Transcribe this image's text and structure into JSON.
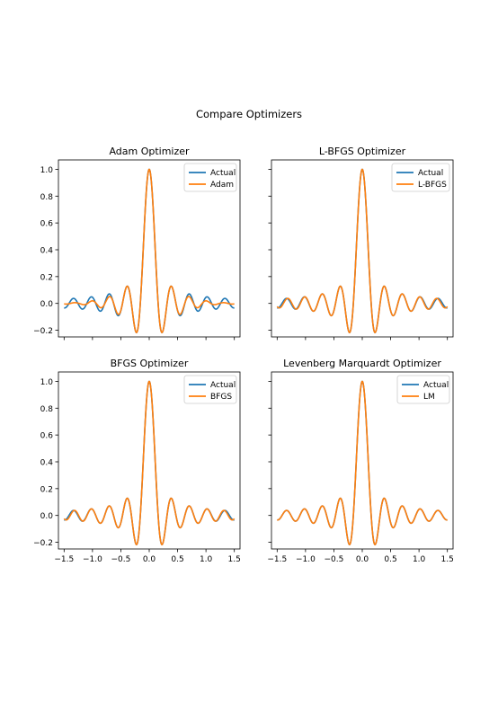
{
  "figure": {
    "suptitle": "Compare Optimizers"
  },
  "colors": {
    "actual": "#1f77b4",
    "fit": "#ff7f0e",
    "axes": "#000000",
    "legend_border": "#cccccc"
  },
  "chart_data": [
    {
      "type": "line",
      "title": "Adam Optimizer",
      "xlim": [
        -1.6,
        1.6
      ],
      "ylim": [
        -0.25,
        1.07
      ],
      "yticks": [
        -0.2,
        0.0,
        0.2,
        0.4,
        0.6,
        0.8,
        1.0
      ],
      "ytick_labels": [
        "−0.2",
        "0.0",
        "0.2",
        "0.4",
        "0.6",
        "0.8",
        "1.0"
      ],
      "xticks": [
        -1.5,
        -1.0,
        -0.5,
        0.0,
        0.5,
        1.0,
        1.5
      ],
      "xtick_labels": [],
      "legend": "top-right",
      "series": [
        {
          "name": "Actual",
          "function": "sin(20x)/(20x)",
          "x_range": [
            -1.5,
            1.5
          ]
        },
        {
          "name": "Adam",
          "function": "fitted approximation of sin(20x)/(20x); damped outer ripples (|x| > 0.6)",
          "x_range": [
            -1.5,
            1.5
          ]
        }
      ]
    },
    {
      "type": "line",
      "title": "L-BFGS Optimizer",
      "xlim": [
        -1.6,
        1.6
      ],
      "ylim": [
        -0.25,
        1.07
      ],
      "yticks": [
        -0.2,
        0.0,
        0.2,
        0.4,
        0.6,
        0.8,
        1.0
      ],
      "ytick_labels": [],
      "xticks": [
        -1.5,
        -1.0,
        -0.5,
        0.0,
        0.5,
        1.0,
        1.5
      ],
      "xtick_labels": [],
      "legend": "top-right",
      "series": [
        {
          "name": "Actual",
          "function": "sin(20x)/(20x)",
          "x_range": [
            -1.5,
            1.5
          ]
        },
        {
          "name": "L-BFGS",
          "function": "fitted approximation of sin(20x)/(20x); slightly shifted outer ripples",
          "x_range": [
            -1.5,
            1.5
          ]
        }
      ]
    },
    {
      "type": "line",
      "title": "BFGS Optimizer",
      "xlim": [
        -1.6,
        1.6
      ],
      "ylim": [
        -0.25,
        1.07
      ],
      "yticks": [
        -0.2,
        0.0,
        0.2,
        0.4,
        0.6,
        0.8,
        1.0
      ],
      "ytick_labels": [
        "−0.2",
        "0.0",
        "0.2",
        "0.4",
        "0.6",
        "0.8",
        "1.0"
      ],
      "xticks": [
        -1.5,
        -1.0,
        -0.5,
        0.0,
        0.5,
        1.0,
        1.5
      ],
      "xtick_labels": [
        "−1.5",
        "−1.0",
        "−0.5",
        "0.0",
        "0.5",
        "1.0",
        "1.5"
      ],
      "legend": "top-right",
      "series": [
        {
          "name": "Actual",
          "function": "sin(20x)/(20x)",
          "x_range": [
            -1.5,
            1.5
          ]
        },
        {
          "name": "BFGS",
          "function": "fitted approximation of sin(20x)/(20x); small phase error at edges",
          "x_range": [
            -1.5,
            1.5
          ]
        }
      ]
    },
    {
      "type": "line",
      "title": "Levenberg Marquardt Optimizer",
      "xlim": [
        -1.6,
        1.6
      ],
      "ylim": [
        -0.25,
        1.07
      ],
      "yticks": [
        -0.2,
        0.0,
        0.2,
        0.4,
        0.6,
        0.8,
        1.0
      ],
      "ytick_labels": [],
      "xticks": [
        -1.5,
        -1.0,
        -0.5,
        0.0,
        0.5,
        1.0,
        1.5
      ],
      "xtick_labels": [
        "−1.5",
        "−1.0",
        "−0.5",
        "0.0",
        "0.5",
        "1.0",
        "1.5"
      ],
      "legend": "top-right",
      "series": [
        {
          "name": "Actual",
          "function": "sin(20x)/(20x)",
          "x_range": [
            -1.5,
            1.5
          ]
        },
        {
          "name": "LM",
          "function": "sin(20x)/(20x) (exact fit, overlays Actual)",
          "x_range": [
            -1.5,
            1.5
          ]
        }
      ]
    }
  ]
}
